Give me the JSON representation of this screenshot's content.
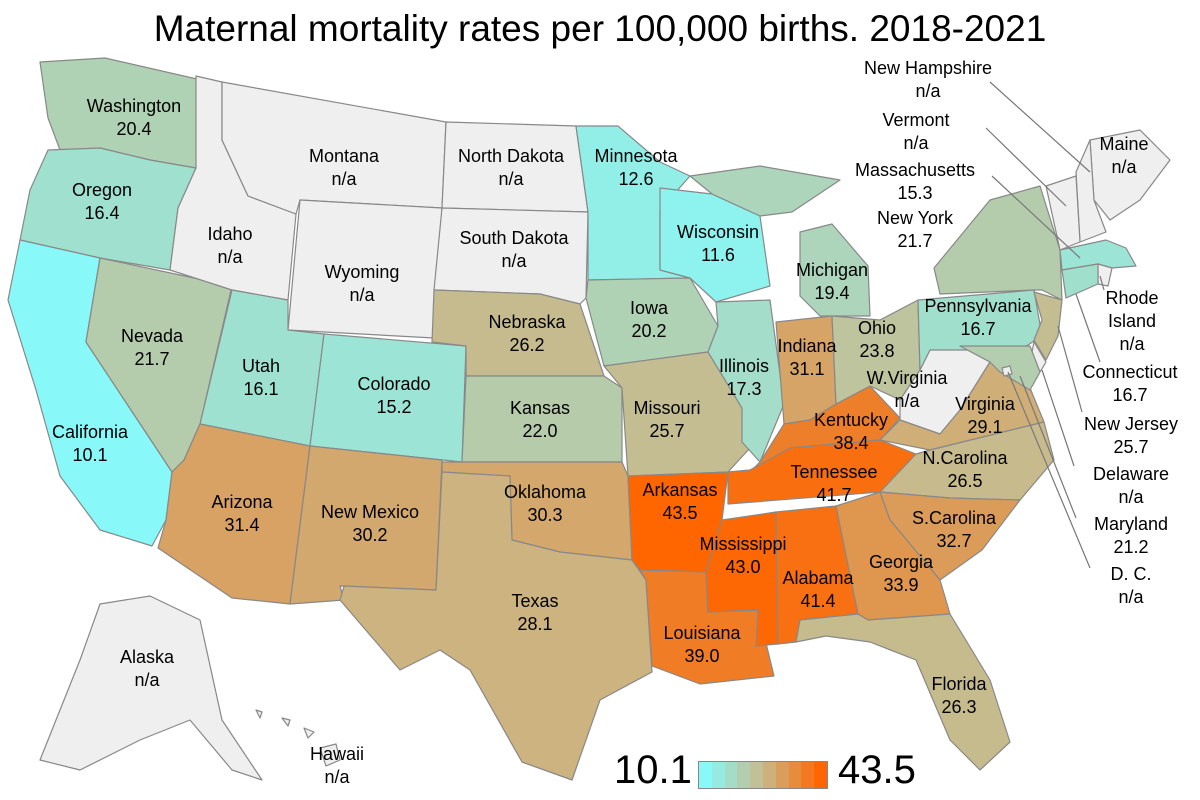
{
  "title": "Maternal mortality rates per 100,000 births. 2018-2021",
  "legend": {
    "min_label": "10.1",
    "max_label": "43.5",
    "min": 10.1,
    "max": 43.5,
    "color_low": "#88f8f8",
    "color_high": "#ff6600",
    "color_mid": "#c8b98a",
    "color_na": "#efefef"
  },
  "states": {
    "WA": {
      "name": "Washington",
      "value": "20.4"
    },
    "OR": {
      "name": "Oregon",
      "value": "16.4"
    },
    "CA": {
      "name": "California",
      "value": "10.1"
    },
    "NV": {
      "name": "Nevada",
      "value": "21.7"
    },
    "ID": {
      "name": "Idaho",
      "value": "n/a"
    },
    "MT": {
      "name": "Montana",
      "value": "n/a"
    },
    "WY": {
      "name": "Wyoming",
      "value": "n/a"
    },
    "UT": {
      "name": "Utah",
      "value": "16.1"
    },
    "AZ": {
      "name": "Arizona",
      "value": "31.4"
    },
    "CO": {
      "name": "Colorado",
      "value": "15.2"
    },
    "NM": {
      "name": "New Mexico",
      "value": "30.2"
    },
    "ND": {
      "name": "North Dakota",
      "value": "n/a"
    },
    "SD": {
      "name": "South Dakota",
      "value": "n/a"
    },
    "NE": {
      "name": "Nebraska",
      "value": "26.2"
    },
    "KS": {
      "name": "Kansas",
      "value": "22.0"
    },
    "OK": {
      "name": "Oklahoma",
      "value": "30.3"
    },
    "TX": {
      "name": "Texas",
      "value": "28.1"
    },
    "MN": {
      "name": "Minnesota",
      "value": "12.6"
    },
    "IA": {
      "name": "Iowa",
      "value": "20.2"
    },
    "MO": {
      "name": "Missouri",
      "value": "25.7"
    },
    "AR": {
      "name": "Arkansas",
      "value": "43.5"
    },
    "LA": {
      "name": "Louisiana",
      "value": "39.0"
    },
    "WI": {
      "name": "Wisconsin",
      "value": "11.6"
    },
    "IL": {
      "name": "Illinois",
      "value": "17.3"
    },
    "MS": {
      "name": "Mississippi",
      "value": "43.0"
    },
    "MI": {
      "name": "Michigan",
      "value": "19.4"
    },
    "IN": {
      "name": "Indiana",
      "value": "31.1"
    },
    "KY": {
      "name": "Kentucky",
      "value": "38.4"
    },
    "TN": {
      "name": "Tennessee",
      "value": "41.7"
    },
    "AL": {
      "name": "Alabama",
      "value": "41.4"
    },
    "OH": {
      "name": "Ohio",
      "value": "23.8"
    },
    "WV": {
      "name": "W.Virginia",
      "value": "n/a"
    },
    "VA": {
      "name": "Virginia",
      "value": "29.1"
    },
    "NC": {
      "name": "N.Carolina",
      "value": "26.5"
    },
    "SC": {
      "name": "S.Carolina",
      "value": "32.7"
    },
    "GA": {
      "name": "Georgia",
      "value": "33.9"
    },
    "FL": {
      "name": "Florida",
      "value": "26.3"
    },
    "PA": {
      "name": "Pennsylvania",
      "value": "16.7"
    },
    "NY": {
      "name": "New York",
      "value": "21.7"
    },
    "ME": {
      "name": "Maine",
      "value": "n/a"
    },
    "NH": {
      "name": "New Hampshire",
      "value": "n/a"
    },
    "VT": {
      "name": "Vermont",
      "value": "n/a"
    },
    "MA": {
      "name": "Massachusetts",
      "value": "15.3"
    },
    "RI": {
      "name": "Rhode Island",
      "name_line1": "Rhode",
      "name_line2": "Island",
      "value": "n/a"
    },
    "CT": {
      "name": "Connecticut",
      "value": "16.7"
    },
    "NJ": {
      "name": "New Jersey",
      "value": "25.7"
    },
    "DE": {
      "name": "Delaware",
      "value": "n/a"
    },
    "MD": {
      "name": "Maryland",
      "value": "21.2"
    },
    "DC": {
      "name": "D. C.",
      "value": "n/a"
    },
    "AK": {
      "name": "Alaska",
      "value": "n/a"
    },
    "HI": {
      "name": "Hawaii",
      "value": "n/a"
    }
  }
}
